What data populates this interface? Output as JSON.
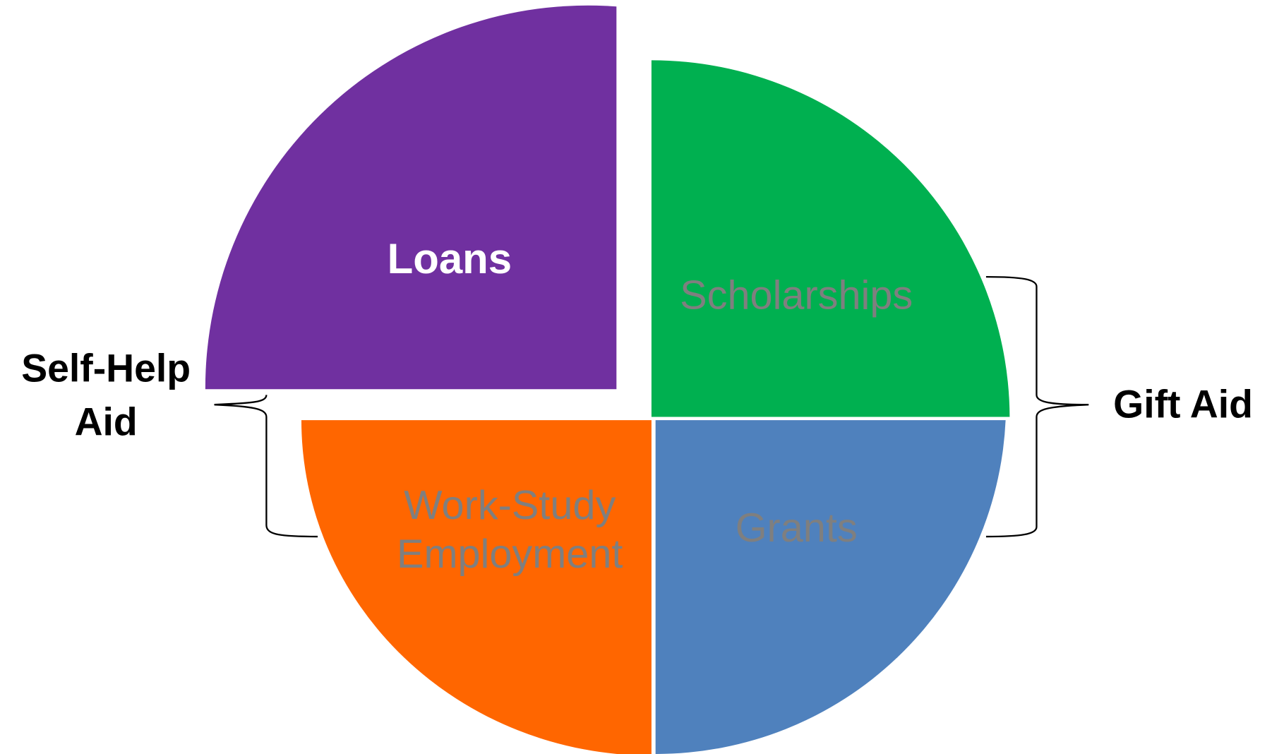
{
  "segments": [
    {
      "label": "Loans"
    },
    {
      "label": "Scholarships"
    },
    {
      "label": "Grants"
    },
    {
      "label": [
        "Work-Study",
        "Employment"
      ]
    }
  ],
  "groups": [
    {
      "label": [
        "Self-Help",
        "Aid"
      ]
    },
    {
      "label": "Gift Aid"
    }
  ]
}
